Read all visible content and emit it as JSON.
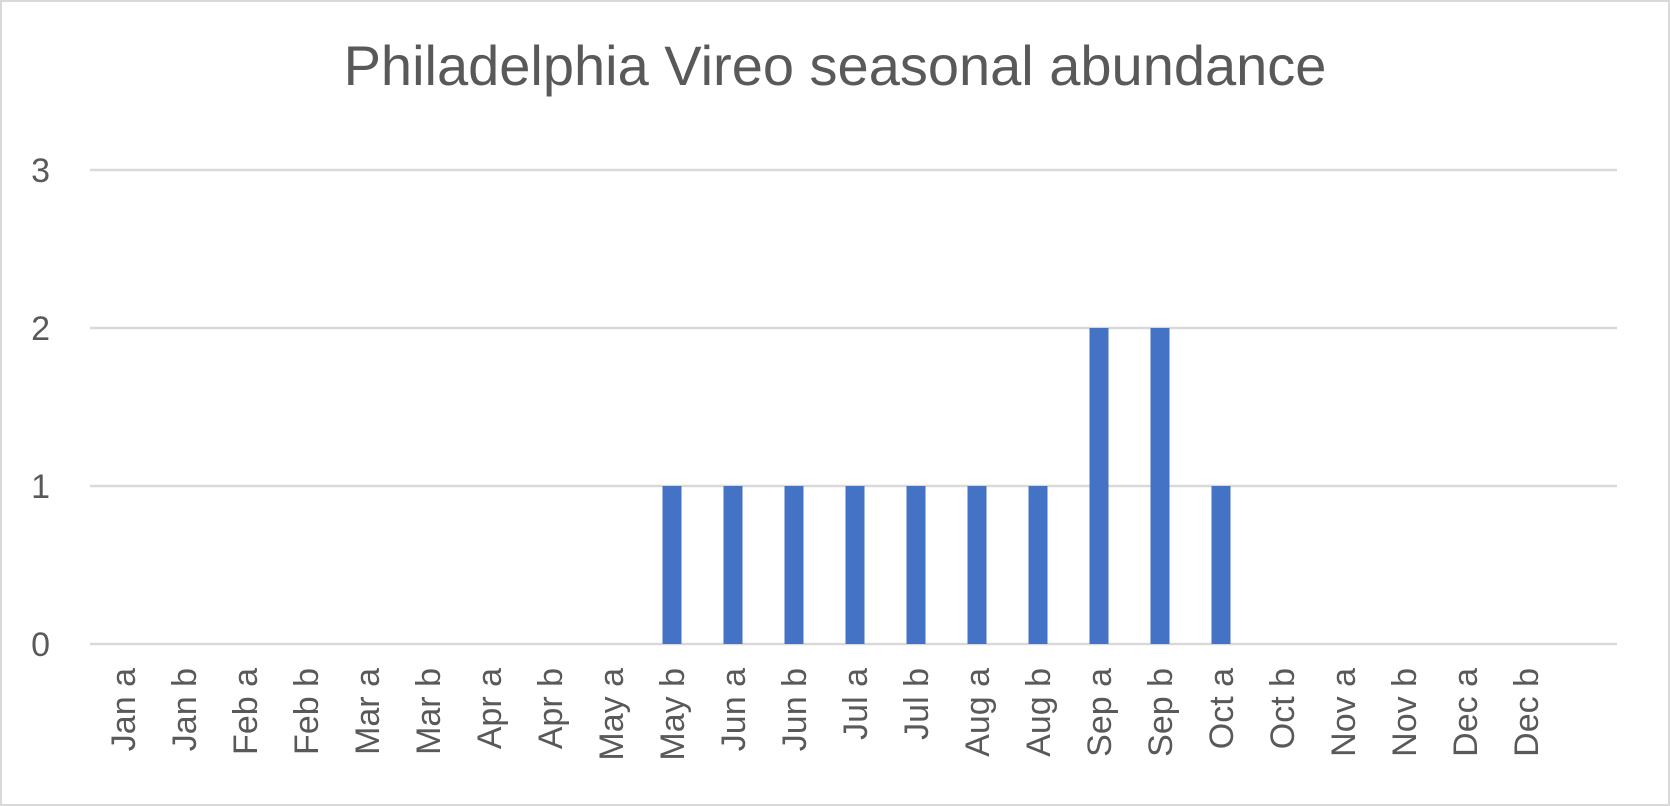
{
  "chart_data": {
    "type": "bar",
    "title": "Philadelphia Vireo seasonal abundance",
    "xlabel": "",
    "ylabel": "",
    "ylim": [
      0,
      3
    ],
    "yticks": [
      0,
      1,
      2,
      3
    ],
    "grid": true,
    "legend": "none",
    "bar_color": "#4472c4",
    "grid_color": "#d9d9d9",
    "text_color": "#595959",
    "categories": [
      "Jan a",
      "Jan b",
      "Feb a",
      "Feb b",
      "Mar a",
      "Mar b",
      "Apr a",
      "Apr b",
      "May a",
      "May b",
      "Jun a",
      "Jun b",
      "Jul a",
      "Jul b",
      "Aug a",
      "Aug b",
      "Sep a",
      "Sep b",
      "Oct a",
      "Oct b",
      "Nov a",
      "Nov b",
      "Dec a",
      "Dec b"
    ],
    "values": [
      0,
      0,
      0,
      0,
      0,
      0,
      0,
      0,
      0,
      1,
      1,
      1,
      1,
      1,
      1,
      1,
      2,
      2,
      1,
      0,
      0,
      0,
      0,
      0
    ]
  }
}
